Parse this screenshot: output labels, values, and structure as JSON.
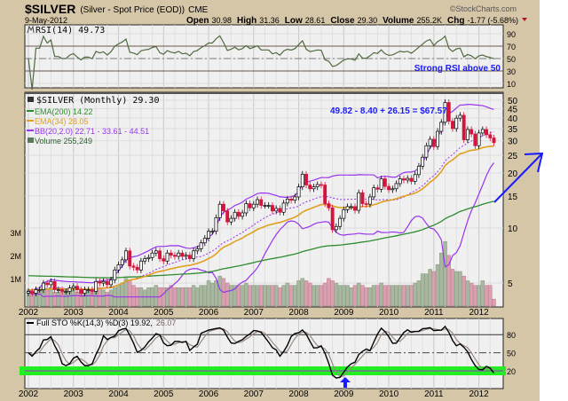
{
  "header": {
    "symbol": "$SILVER",
    "description": "(Silver - Spot Price (EOD))",
    "exchange": "CME",
    "brand": "©StockCharts.com",
    "date": "9-May-2012",
    "open_label": "Open",
    "open": "30.98",
    "high_label": "High",
    "high": "31.36",
    "low_label": "Low",
    "low": "28.61",
    "close_label": "Close",
    "close": "29.30",
    "volume_label": "Volume",
    "volume": "255.2K",
    "chg_label": "Chg",
    "chg": "-1.77 (-5.68%)"
  },
  "rsi_panel": {
    "legend": "RSI(14) 49.73",
    "annotation": "Strong RSI above 50",
    "ticks": [
      "90",
      "70",
      "50",
      "30",
      "10"
    ]
  },
  "price_panel": {
    "legend_main": "$SILVER (Monthly) 29.30",
    "legend_ema200": "EMA(200) 14.22",
    "legend_ema34": "EMA(34) 28.05",
    "legend_bb": "BB(20,2.0) 22.71 - 33.61 - 44.51",
    "legend_volume": "Volume 255,249",
    "annotation": "49.82 - 8.40 + 26.15 = $67.57",
    "price_ticks": [
      "50",
      "45",
      "40",
      "35",
      "30",
      "25",
      "20",
      "15",
      "10",
      "5"
    ],
    "volume_ticks": [
      "3M",
      "2M",
      "1M"
    ]
  },
  "sto_panel": {
    "legend_k": "Full STO %K(14,3) %D(3) 19.92,",
    "legend_d": "26.07",
    "ticks": [
      "80",
      "50",
      "20"
    ]
  },
  "years": [
    "2002",
    "2003",
    "2004",
    "2005",
    "2006",
    "2007",
    "2008",
    "2009",
    "2010",
    "2011",
    "2012"
  ],
  "colors": {
    "bg": "#d6c6a8",
    "ema200": "#2e8b2e",
    "ema34": "#e0a020",
    "bb": "#9933ee",
    "up": "#000000",
    "down": "#d4143c",
    "annot": "#1a1aff",
    "band": "#22ee22"
  },
  "chart_data": {
    "type": "candlestick",
    "title": "$SILVER (Silver - Spot Price (EOD)) Monthly",
    "x_start": "2002-01",
    "interval": "month",
    "ylim": [
      4,
      52
    ],
    "yscale": "log",
    "close": [
      4.5,
      4.4,
      4.6,
      4.6,
      5.0,
      4.9,
      5.1,
      4.6,
      4.6,
      4.5,
      4.5,
      4.7,
      4.8,
      4.6,
      4.4,
      4.6,
      4.6,
      4.5,
      5.1,
      5.0,
      5.1,
      4.9,
      5.2,
      5.9,
      6.3,
      6.7,
      7.5,
      6.2,
      6.1,
      5.9,
      6.6,
      6.8,
      6.9,
      7.3,
      7.5,
      6.8,
      6.6,
      7.3,
      7.1,
      7.0,
      7.3,
      7.0,
      7.1,
      6.8,
      7.5,
      7.7,
      8.3,
      8.8,
      9.6,
      9.6,
      11.4,
      13.5,
      12.4,
      10.8,
      11.3,
      12.2,
      11.6,
      12.1,
      13.6,
      12.9,
      13.5,
      14.3,
      13.3,
      13.3,
      13.3,
      12.4,
      12.8,
      12.2,
      13.7,
      14.4,
      14.2,
      14.8,
      16.8,
      19.7,
      17.2,
      16.4,
      16.8,
      17.3,
      17.2,
      13.6,
      12.9,
      9.8,
      10.2,
      11.3,
      12.6,
      13.1,
      13.1,
      12.5,
      15.6,
      13.6,
      13.5,
      14.8,
      16.6,
      16.3,
      18.6,
      16.9,
      16.2,
      16.4,
      17.5,
      18.6,
      18.3,
      18.7,
      18.0,
      19.6,
      21.8,
      24.4,
      28.2,
      30.6,
      27.9,
      33.8,
      37.9,
      48.6,
      38.4,
      35.0,
      39.9,
      41.4,
      30.4,
      34.6,
      32.7,
      28.2,
      33.1,
      34.6,
      32.4,
      31.1,
      29.3
    ],
    "volume_millions": [
      0.7,
      0.6,
      0.6,
      0.7,
      0.8,
      0.7,
      0.7,
      0.6,
      0.6,
      0.6,
      0.7,
      0.6,
      0.7,
      0.6,
      0.7,
      0.6,
      0.7,
      0.6,
      0.7,
      0.8,
      0.7,
      0.6,
      0.7,
      0.8,
      0.9,
      1.0,
      1.2,
      1.1,
      0.9,
      0.8,
      0.8,
      0.7,
      0.8,
      0.8,
      0.9,
      0.8,
      0.8,
      0.8,
      0.9,
      0.8,
      0.8,
      0.8,
      0.8,
      0.8,
      0.9,
      0.8,
      0.9,
      0.9,
      1.1,
      1.0,
      1.1,
      1.3,
      1.2,
      1.0,
      0.9,
      0.9,
      0.9,
      0.9,
      1.0,
      0.9,
      0.9,
      0.9,
      0.9,
      0.9,
      0.9,
      0.9,
      0.9,
      0.8,
      0.9,
      1.0,
      0.9,
      0.9,
      1.1,
      1.2,
      1.1,
      1.0,
      0.9,
      0.9,
      0.9,
      1.0,
      1.2,
      1.1,
      1.0,
      0.9,
      0.9,
      0.9,
      0.8,
      0.9,
      1.0,
      0.9,
      0.8,
      0.8,
      0.9,
      0.9,
      1.0,
      0.9,
      0.9,
      0.9,
      0.9,
      0.9,
      0.9,
      0.9,
      0.9,
      1.0,
      1.1,
      1.4,
      1.4,
      1.6,
      1.5,
      1.8,
      2.3,
      2.8,
      2.2,
      1.6,
      1.5,
      1.5,
      1.3,
      1.1,
      1.0,
      0.9,
      0.9,
      1.1,
      0.9,
      0.9,
      0.3
    ],
    "rsi_ylim": [
      0,
      100
    ],
    "rsi_levels": [
      70,
      50,
      30
    ],
    "sto_ylim": [
      0,
      100
    ],
    "sto_levels": [
      80,
      50,
      20
    ]
  }
}
